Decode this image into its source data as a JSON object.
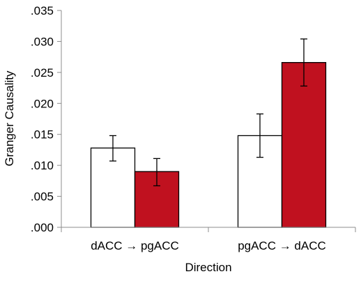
{
  "chart_data": {
    "type": "bar",
    "title": "",
    "xlabel": "Direction",
    "ylabel": "Granger Causality",
    "ylim": [
      0,
      0.035
    ],
    "yticks": [
      ".000",
      ".005",
      ".010",
      ".015",
      ".020",
      ".025",
      ".030",
      ".035"
    ],
    "grid": false,
    "legend": "none",
    "categories": [
      "dACC → pgACC",
      "pgACC → dACC"
    ],
    "series": [
      {
        "values": [
          0.0128,
          0.0148
        ],
        "error_low": [
          0.0107,
          0.0113
        ],
        "error_high": [
          0.0148,
          0.0183
        ],
        "fill": "#ffffff",
        "stroke": "#000000"
      },
      {
        "values": [
          0.009,
          0.0266
        ],
        "error_low": [
          0.0067,
          0.0228
        ],
        "error_high": [
          0.0111,
          0.0304
        ],
        "fill": "#c0111f",
        "stroke": "#000000"
      }
    ]
  }
}
